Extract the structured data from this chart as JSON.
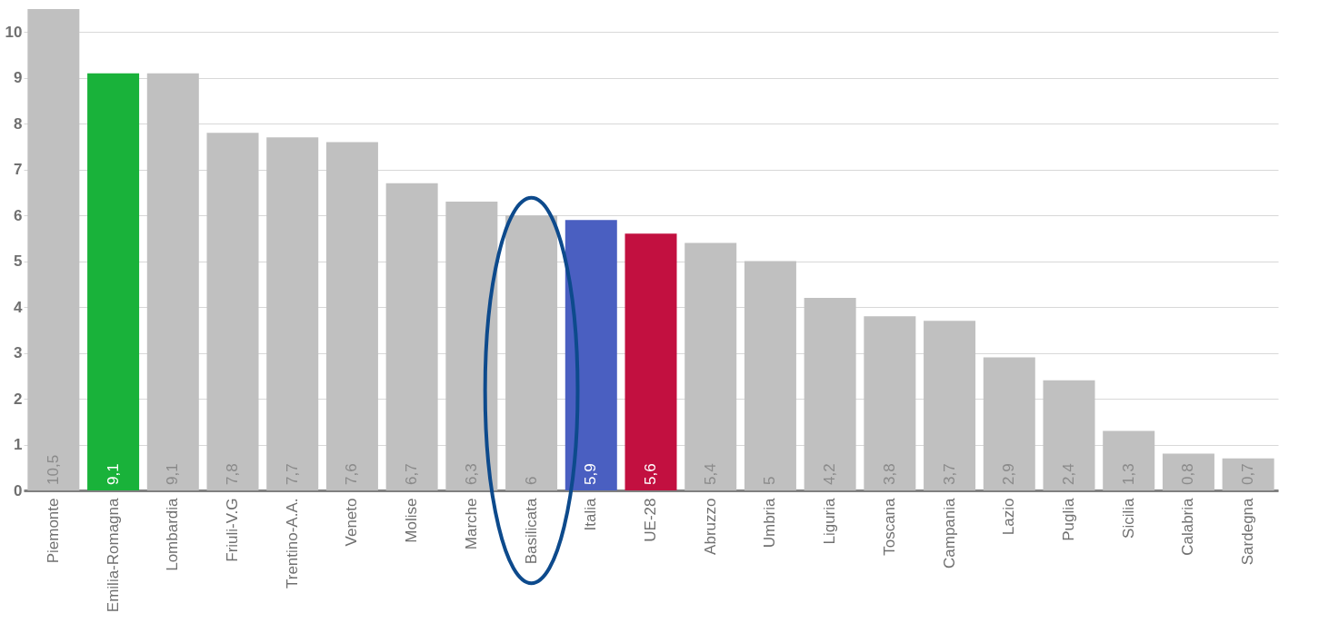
{
  "chart_data": {
    "type": "bar",
    "categories": [
      "Piemonte",
      "Emilia-Romagna",
      "Lombardia",
      "Friuli-V.G",
      "Trentino-A.A.",
      "Veneto",
      "Molise",
      "Marche",
      "Basilicata",
      "Italia",
      "UE-28",
      "Abruzzo",
      "Umbria",
      "Liguria",
      "Toscana",
      "Campania",
      "Lazio",
      "Puglia",
      "Sicilia",
      "Calabria",
      "Sardegna"
    ],
    "values": [
      10.5,
      9.1,
      9.1,
      7.8,
      7.7,
      7.6,
      6.7,
      6.3,
      6,
      5.9,
      5.6,
      5.4,
      5,
      4.2,
      3.8,
      3.7,
      2.9,
      2.4,
      1.3,
      0.8,
      0.7
    ],
    "colors": [
      "#c0c0c0",
      "#19b23a",
      "#c0c0c0",
      "#c0c0c0",
      "#c0c0c0",
      "#c0c0c0",
      "#c0c0c0",
      "#c0c0c0",
      "#c0c0c0",
      "#4a5fc1",
      "#c21040",
      "#c0c0c0",
      "#c0c0c0",
      "#c0c0c0",
      "#c0c0c0",
      "#c0c0c0",
      "#c0c0c0",
      "#c0c0c0",
      "#c0c0c0",
      "#c0c0c0",
      "#c0c0c0"
    ],
    "value_labels": [
      "10,5",
      "9,1",
      "9,1",
      "7,8",
      "7,7",
      "7,6",
      "6,7",
      "6,3",
      "6",
      "5,9",
      "5,6",
      "5,4",
      "5",
      "4,2",
      "3,8",
      "3,7",
      "2,9",
      "2,4",
      "1,3",
      "0,8",
      "0,7"
    ],
    "ylim": [
      0,
      10.5
    ],
    "yticks": [
      0,
      1,
      2,
      3,
      4,
      5,
      6,
      7,
      8,
      9,
      10
    ],
    "grid": "y"
  }
}
